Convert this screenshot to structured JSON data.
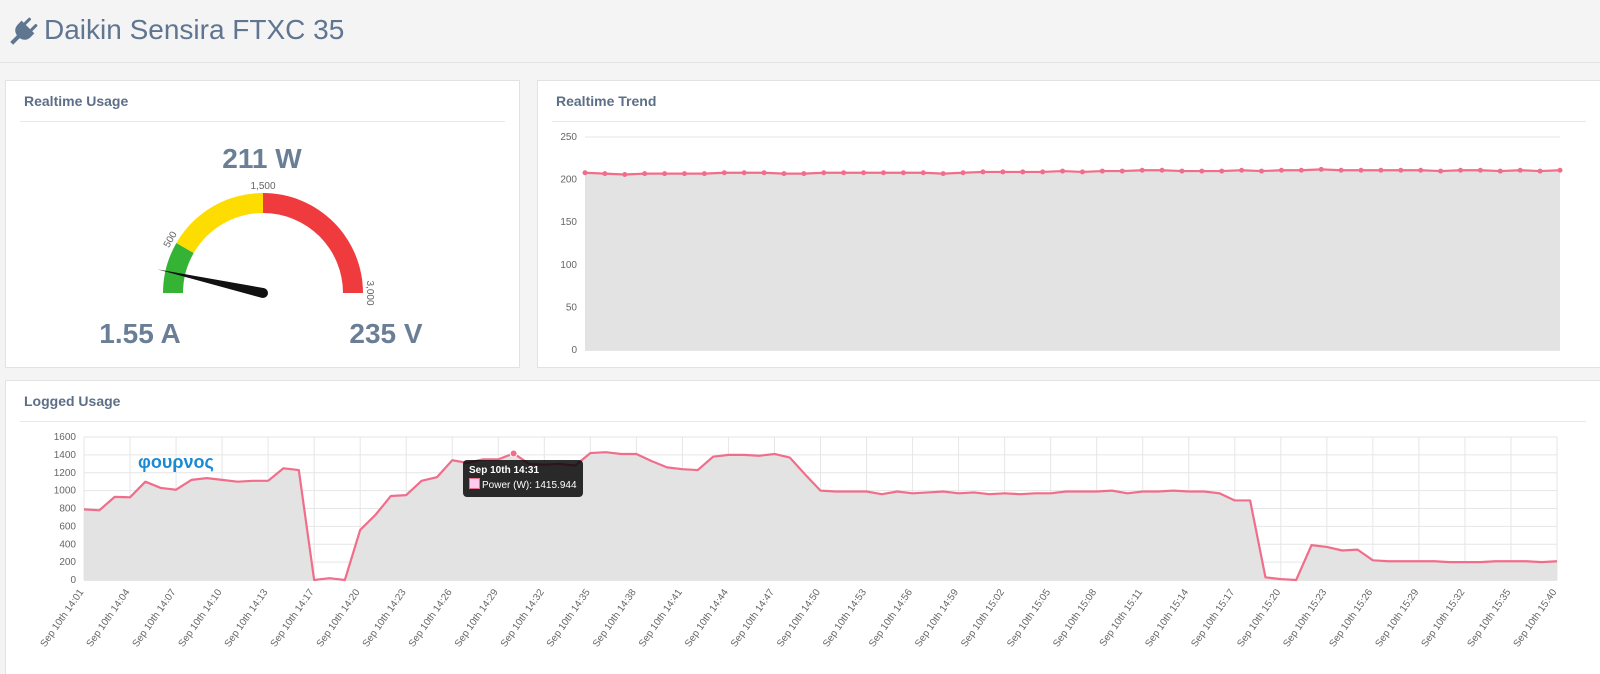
{
  "header": {
    "title": "Daikin Sensira FTXC 35"
  },
  "chart_data": [
    {
      "type": "gauge",
      "title": "Realtime Usage",
      "value": 211,
      "value_label": "211 W",
      "current": "1.55 A",
      "voltage": "235 V",
      "range": [
        0,
        3000
      ],
      "bands": [
        {
          "from": 0,
          "to": 500,
          "color": "#34b334"
        },
        {
          "from": 500,
          "to": 1500,
          "color": "#fddd00"
        },
        {
          "from": 1500,
          "to": 3000,
          "color": "#f03b3e"
        }
      ],
      "ticks": [
        500,
        {
          "value": 1500,
          "label": "1,500"
        },
        {
          "value": 3000,
          "label": "3,000"
        }
      ]
    },
    {
      "type": "line",
      "title": "Realtime Trend",
      "area": true,
      "markers": true,
      "series": [
        {
          "color": "#f06e8c",
          "values": [
            208,
            207,
            206,
            207,
            207,
            207,
            207,
            208,
            208,
            208,
            207,
            207,
            208,
            208,
            208,
            208,
            208,
            208,
            207,
            208,
            209,
            209,
            209,
            209,
            210,
            209,
            210,
            210,
            211,
            211,
            210,
            210,
            210,
            211,
            210,
            211,
            211,
            212,
            211,
            211,
            211,
            211,
            211,
            210,
            211,
            211,
            210,
            211,
            210,
            211
          ]
        }
      ],
      "ylim": [
        0,
        250
      ],
      "yticks": [
        0,
        50,
        100,
        150,
        200,
        250
      ],
      "grid": true
    },
    {
      "type": "line",
      "title": "Logged Usage",
      "area": true,
      "markers": false,
      "categories": [
        "Sep 10th 14:01",
        null,
        null,
        "Sep 10th 14:04",
        null,
        null,
        "Sep 10th 14:07",
        null,
        null,
        "Sep 10th 14:10",
        null,
        null,
        "Sep 10th 14:13",
        null,
        null,
        "Sep 10th 14:17",
        null,
        null,
        "Sep 10th 14:20",
        null,
        null,
        "Sep 10th 14:23",
        null,
        null,
        "Sep 10th 14:26",
        null,
        null,
        "Sep 10th 14:29",
        null,
        null,
        "Sep 10th 14:32",
        null,
        null,
        "Sep 10th 14:35",
        null,
        null,
        "Sep 10th 14:38",
        null,
        null,
        "Sep 10th 14:41",
        null,
        null,
        "Sep 10th 14:44",
        null,
        null,
        "Sep 10th 14:47",
        null,
        null,
        "Sep 10th 14:50",
        null,
        null,
        "Sep 10th 14:53",
        null,
        null,
        "Sep 10th 14:56",
        null,
        null,
        "Sep 10th 14:59",
        null,
        null,
        "Sep 10th 15:02",
        null,
        null,
        "Sep 10th 15:05",
        null,
        null,
        "Sep 10th 15:08",
        null,
        null,
        "Sep 10th 15:11",
        null,
        null,
        "Sep 10th 15:14",
        null,
        null,
        "Sep 10th 15:17",
        null,
        null,
        "Sep 10th 15:20",
        null,
        null,
        "Sep 10th 15:23",
        null,
        null,
        "Sep 10th 15:26",
        null,
        null,
        "Sep 10th 15:29",
        null,
        null,
        "Sep 10th 15:32",
        null,
        null,
        "Sep 10th 15:35",
        null,
        null,
        "Sep 10th 15:40"
      ],
      "series": [
        {
          "name": "Power (W)",
          "color": "#f06e8c",
          "values": [
            790,
            780,
            930,
            925,
            1100,
            1030,
            1010,
            1120,
            1140,
            1120,
            1100,
            1110,
            1110,
            1250,
            1230,
            0,
            20,
            0,
            560,
            730,
            940,
            950,
            1110,
            1150,
            1340,
            1310,
            1350,
            1350,
            1415.944,
            1300,
            1290,
            1300,
            1280,
            1420,
            1430,
            1410,
            1410,
            1330,
            1260,
            1240,
            1230,
            1380,
            1400,
            1400,
            1390,
            1410,
            1370,
            1180,
            1000,
            990,
            990,
            990,
            960,
            990,
            970,
            980,
            990,
            970,
            980,
            960,
            970,
            960,
            970,
            970,
            990,
            990,
            990,
            1000,
            970,
            990,
            990,
            1000,
            990,
            990,
            970,
            890,
            890,
            30,
            10,
            0,
            390,
            370,
            330,
            340,
            220,
            210,
            210,
            210,
            210,
            200,
            200,
            200,
            210,
            210,
            210,
            200,
            210
          ]
        }
      ],
      "ylim": [
        0,
        1600
      ],
      "yticks": [
        0,
        200,
        400,
        600,
        800,
        1000,
        1200,
        1400,
        1600
      ],
      "grid": true,
      "annotation": "φουρνος",
      "tooltip": {
        "title": "Sep 10th 14:31",
        "index": 28
      }
    }
  ]
}
